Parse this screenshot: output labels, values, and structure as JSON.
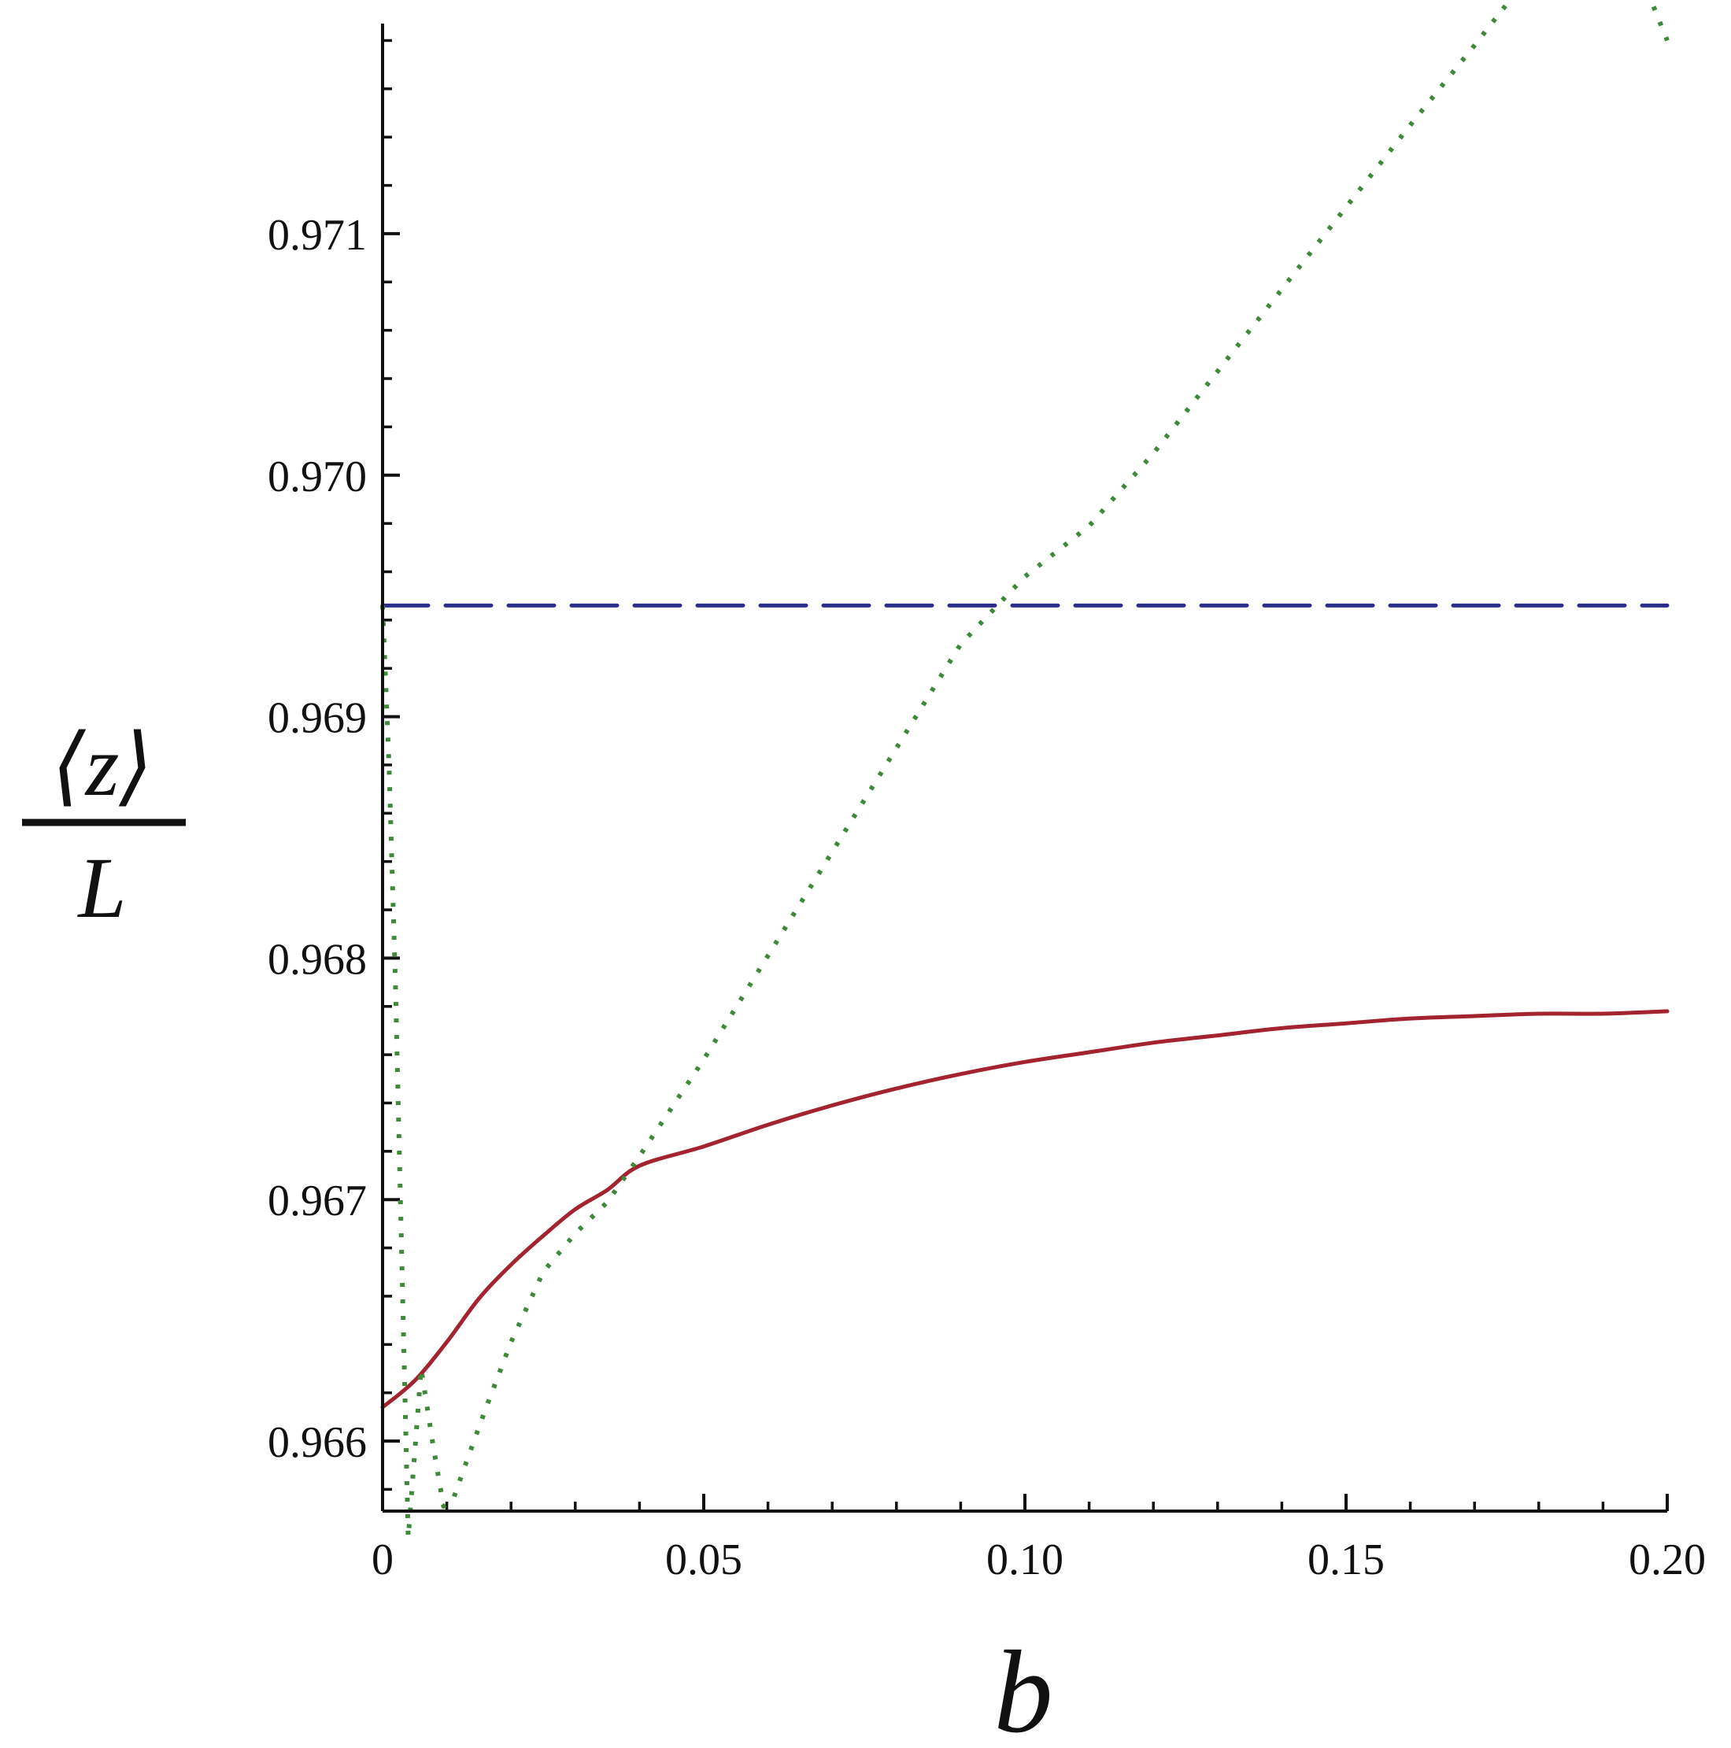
{
  "chart_data": {
    "type": "line",
    "title": "",
    "xlabel": "b",
    "ylabel": {
      "numerator": "⟨z⟩",
      "denominator": "L"
    },
    "xlim": [
      0,
      0.2
    ],
    "ylim": [
      0.96571,
      0.97187
    ],
    "x_ticks": [
      0,
      0.05,
      0.1,
      0.15,
      0.2
    ],
    "x_tick_labels": [
      "0",
      "0.05",
      "0.10",
      "0.15",
      "0.20"
    ],
    "x_minor_step": 0.01,
    "y_ticks": [
      0.966,
      0.967,
      0.968,
      0.969,
      0.97,
      0.971
    ],
    "y_tick_labels": [
      "0.966",
      "0.967",
      "0.968",
      "0.969",
      "0.970",
      "0.971"
    ],
    "y_minor_step": 0.0002,
    "grid": false,
    "legend": "none",
    "series": [
      {
        "style": "solid",
        "color": "#a3232e",
        "x": [
          0,
          0.005,
          0.01,
          0.015,
          0.02,
          0.025,
          0.03,
          0.035,
          0.04,
          0.05,
          0.06,
          0.07,
          0.08,
          0.09,
          0.1,
          0.11,
          0.12,
          0.13,
          0.14,
          0.15,
          0.16,
          0.17,
          0.18,
          0.19,
          0.2
        ],
        "y": [
          0.96614,
          0.96625,
          0.96641,
          0.96659,
          0.96673,
          0.96685,
          0.96696,
          0.96704,
          0.96714,
          0.96722,
          0.96731,
          0.96739,
          0.96746,
          0.96752,
          0.96757,
          0.96761,
          0.96765,
          0.96768,
          0.96771,
          0.96773,
          0.96775,
          0.96776,
          0.96777,
          0.96777,
          0.96778
        ]
      },
      {
        "style": "dashed",
        "color": "#2b2f8c",
        "x": [
          0,
          0.2
        ],
        "y": [
          0.96946,
          0.96946
        ]
      },
      {
        "style": "dotted",
        "color": "#3e8a3a",
        "x": [
          0,
          0.001,
          0.002,
          0.004,
          0.006,
          0.008,
          0.0095,
          0.011,
          0.013,
          0.016,
          0.02,
          0.025,
          0.03,
          0.035,
          0.04,
          0.05,
          0.06,
          0.07,
          0.08,
          0.09,
          0.1,
          0.11,
          0.12,
          0.13,
          0.14,
          0.15,
          0.16,
          0.17,
          0.18,
          0.19,
          0.2
        ],
        "y": [
          0.96946,
          0.9688,
          0.9679,
          0.9656,
          0.9663,
          0.96596,
          0.96573,
          0.96576,
          0.96591,
          0.96613,
          0.96641,
          0.9667,
          0.96686,
          0.96699,
          0.96718,
          0.96758,
          0.96801,
          0.96844,
          0.96887,
          0.9693,
          0.96958,
          0.96979,
          0.97009,
          0.97043,
          0.97077,
          0.97111,
          0.97145,
          0.97178,
          0.97212,
          0.97246,
          0.9718
        ]
      }
    ]
  }
}
